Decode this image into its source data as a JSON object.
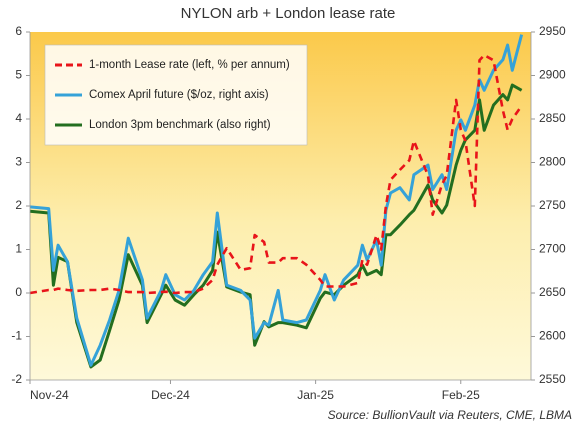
{
  "chart_data": {
    "type": "line",
    "title": "NYLON  arb + London lease rate",
    "source": "Source: BullionVault via Reuters, CME, LBMA",
    "legend": "upper left",
    "x": [
      0,
      4,
      5,
      6,
      8,
      10,
      13,
      15,
      17,
      19,
      21,
      24,
      25,
      28,
      29,
      31,
      33,
      35,
      37,
      39,
      40,
      42,
      45,
      47,
      48,
      50,
      51,
      53,
      54,
      57,
      59,
      62,
      63,
      65,
      67,
      70,
      71,
      72,
      74,
      75,
      76,
      77,
      79,
      81,
      82,
      85,
      86,
      88,
      89,
      91,
      92,
      93,
      95,
      96,
      97,
      99,
      101,
      102,
      103,
      105
    ],
    "xlim": [
      0,
      107
    ],
    "xticks": [
      {
        "value": 0,
        "label": "Nov-24"
      },
      {
        "value": 30,
        "label": "Dec-24"
      },
      {
        "value": 61,
        "label": "Jan-25"
      },
      {
        "value": 92,
        "label": "Feb-25"
      }
    ],
    "ylim": [
      -2,
      6
    ],
    "yticks": [
      -2,
      -1,
      0,
      1,
      2,
      3,
      4,
      5,
      6
    ],
    "y2lim": [
      2550,
      2950
    ],
    "y2ticks": [
      2550,
      2600,
      2650,
      2700,
      2750,
      2800,
      2850,
      2900,
      2950
    ],
    "series": [
      {
        "name": "1-month Lease rate (left, % per annum)",
        "color": "#e8141a",
        "dash": true,
        "values": [
          0,
          0.07,
          0.07,
          0.1,
          0.07,
          0.05,
          0.07,
          0.07,
          0.1,
          0.07,
          0.02,
          0.02,
          0,
          0.02,
          0.03,
          0,
          0.02,
          0.02,
          0.1,
          0.3,
          0.65,
          1.03,
          0.53,
          0.57,
          1.33,
          1.17,
          0.7,
          0.7,
          0.8,
          0.8,
          0.65,
          0.3,
          0.15,
          0.15,
          0.15,
          0.23,
          0.76,
          0.65,
          1.33,
          1.0,
          2.0,
          2.6,
          2.83,
          3.05,
          3.5,
          2.7,
          1.8,
          2.5,
          2.7,
          4.44,
          3.75,
          3.5,
          2.0,
          5.35,
          5.47,
          5.35,
          4.2,
          3.75,
          4.0,
          4.3
        ]
      },
      {
        "name": "Comex April future  ($/oz, right axis)",
        "color": "#35a2d8",
        "axis": "y2",
        "values": [
          2749,
          2747,
          2676,
          2705,
          2686,
          2621,
          2567,
          2590,
          2619,
          2653,
          2713,
          2665,
          2621,
          2653,
          2671,
          2648,
          2642,
          2653,
          2671,
          2686,
          2742,
          2659,
          2653,
          2642,
          2598,
          2616,
          2613,
          2653,
          2619,
          2616,
          2619,
          2653,
          2671,
          2642,
          2665,
          2682,
          2705,
          2688,
          2711,
          2682,
          2745,
          2765,
          2771,
          2757,
          2786,
          2797,
          2769,
          2786,
          2769,
          2837,
          2849,
          2837,
          2866,
          2895,
          2883,
          2906,
          2918,
          2935,
          2906,
          2947
        ]
      },
      {
        "name": "London 3pm benchmark (also right)",
        "color": "#236e1f",
        "axis": "y2",
        "values": [
          2744,
          2742,
          2659,
          2691,
          2686,
          2616,
          2565,
          2573,
          2607,
          2642,
          2694,
          2659,
          2616,
          2648,
          2659,
          2642,
          2636,
          2648,
          2659,
          2676,
          2720,
          2657,
          2651,
          2648,
          2590,
          2617,
          2611,
          2616,
          2616,
          2613,
          2610,
          2644,
          2651,
          2648,
          2659,
          2671,
          2682,
          2671,
          2676,
          2671,
          2717,
          2717,
          2728,
          2740,
          2745,
          2774,
          2757,
          2742,
          2751,
          2797,
          2814,
          2826,
          2837,
          2872,
          2837,
          2866,
          2878,
          2872,
          2889,
          2883
        ]
      }
    ]
  }
}
